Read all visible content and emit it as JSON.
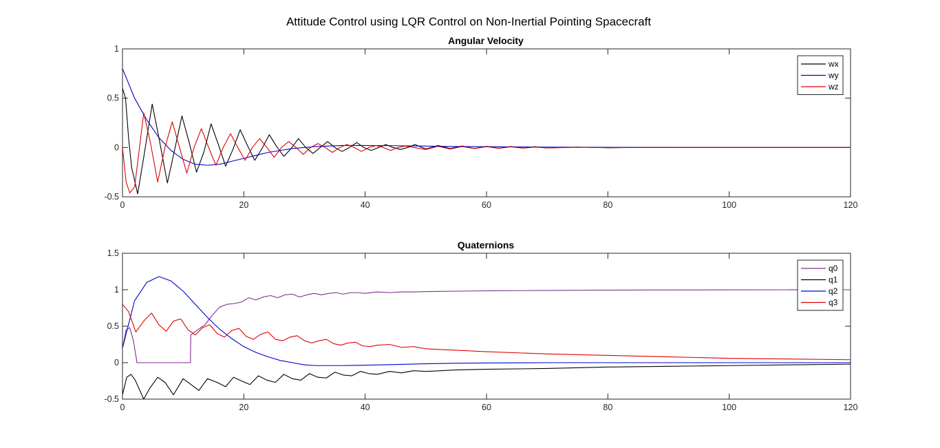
{
  "figure": {
    "title": "Attitude Control using LQR Control on Non-Inertial Pointing Spacecraft"
  },
  "chart_data": [
    {
      "type": "line",
      "title": "Angular Velocity",
      "xlabel": "",
      "ylabel": "",
      "xlim": [
        0,
        120
      ],
      "ylim": [
        -0.5,
        1
      ],
      "xticks": [
        0,
        20,
        40,
        60,
        80,
        100,
        120
      ],
      "yticks": [
        -0.5,
        0,
        0.5,
        1
      ],
      "grid": false,
      "legend_position": "top-right",
      "series": [
        {
          "name": "wx",
          "color": "#000000",
          "x": [
            0,
            0.5,
            1,
            1.5,
            2.5,
            3.5,
            4.9,
            6,
            7.4,
            8.5,
            9.8,
            11,
            12.2,
            13.4,
            14.6,
            15.8,
            17,
            18.2,
            19.4,
            20.6,
            21.8,
            23,
            24.2,
            25.4,
            26.6,
            27.8,
            29,
            30.2,
            31.4,
            32.6,
            33.8,
            35,
            36.2,
            37.4,
            38.6,
            39.8,
            41,
            42.2,
            43.4,
            44.6,
            45.8,
            47,
            48.2,
            50,
            52,
            54,
            56,
            58,
            60,
            62,
            64,
            66,
            68,
            70,
            75,
            80,
            85,
            90,
            95,
            100,
            110,
            120
          ],
          "y": [
            0.6,
            0.5,
            0.1,
            -0.2,
            -0.47,
            -0.1,
            0.44,
            0.1,
            -0.36,
            -0.05,
            0.32,
            0.05,
            -0.25,
            -0.05,
            0.24,
            0.03,
            -0.19,
            -0.02,
            0.18,
            0.02,
            -0.13,
            -0.01,
            0.13,
            0.01,
            -0.09,
            -0.01,
            0.09,
            0.0,
            -0.06,
            0.0,
            0.06,
            0.0,
            -0.04,
            0.0,
            0.05,
            0.0,
            -0.03,
            0.0,
            0.03,
            0.0,
            -0.02,
            0.0,
            0.03,
            -0.015,
            0.02,
            -0.01,
            0.015,
            -0.01,
            0.012,
            -0.008,
            0.01,
            -0.006,
            0.008,
            -0.004,
            0.004,
            -0.003,
            0.002,
            -0.001,
            0.001,
            0.0,
            0.0,
            0.0
          ]
        },
        {
          "name": "wy",
          "color": "#0000cc",
          "x": [
            0,
            2,
            4,
            6,
            8,
            10,
            12,
            14,
            16,
            18,
            20,
            22,
            24,
            26,
            28,
            30,
            32,
            34,
            36,
            38,
            40,
            45,
            50,
            55,
            60,
            70,
            80,
            90,
            100,
            110,
            120
          ],
          "y": [
            0.8,
            0.5,
            0.28,
            0.1,
            -0.03,
            -0.12,
            -0.17,
            -0.18,
            -0.17,
            -0.14,
            -0.11,
            -0.08,
            -0.05,
            -0.03,
            -0.01,
            0.0,
            0.01,
            0.015,
            0.02,
            0.02,
            0.02,
            0.018,
            0.014,
            0.01,
            0.008,
            0.004,
            0.002,
            0.001,
            0.0,
            0.0,
            0.0
          ]
        },
        {
          "name": "wz",
          "color": "#dd0000",
          "x": [
            0,
            0.6,
            1.2,
            2,
            3.5,
            4.6,
            5.8,
            7,
            8.2,
            9.4,
            10.6,
            11.8,
            13,
            14.2,
            15.4,
            16.6,
            17.8,
            19,
            20.2,
            21.4,
            22.6,
            23.8,
            25,
            26.2,
            27.4,
            28.6,
            29.8,
            31,
            32.2,
            33.4,
            34.6,
            35.8,
            37,
            38.2,
            39.4,
            40.6,
            41.8,
            43,
            44.2,
            45.4,
            46.6,
            48,
            50,
            52,
            54,
            56,
            58,
            60,
            62,
            64,
            66,
            68,
            70,
            75,
            80,
            90,
            100,
            110,
            120
          ],
          "y": [
            0.0,
            -0.35,
            -0.46,
            -0.4,
            0.35,
            0.05,
            -0.35,
            0.0,
            0.26,
            0.0,
            -0.26,
            0.0,
            0.19,
            0.0,
            -0.18,
            0.0,
            0.14,
            0.0,
            -0.13,
            0.0,
            0.09,
            0.0,
            -0.1,
            0.0,
            0.06,
            0.0,
            -0.07,
            0.0,
            0.04,
            0.0,
            -0.05,
            0.0,
            0.03,
            0.0,
            -0.04,
            0.0,
            0.02,
            0.0,
            -0.03,
            0.0,
            0.015,
            0.0,
            -0.02,
            0.012,
            -0.015,
            0.01,
            -0.01,
            0.008,
            -0.008,
            0.006,
            -0.006,
            0.004,
            -0.004,
            0.002,
            -0.002,
            0.001,
            0.0,
            0.0,
            0.0
          ]
        }
      ]
    },
    {
      "type": "line",
      "title": "Quaternions",
      "xlabel": "",
      "ylabel": "",
      "xlim": [
        0,
        120
      ],
      "ylim": [
        -0.5,
        1.5
      ],
      "xticks": [
        0,
        20,
        40,
        60,
        80,
        100,
        120
      ],
      "yticks": [
        -0.5,
        0,
        0.5,
        1,
        1.5
      ],
      "grid": false,
      "legend_position": "top-right",
      "series": [
        {
          "name": "q0",
          "color": "#7e2f8e",
          "x": [
            0,
            0.6,
            1.2,
            1.8,
            2.3,
            2.35,
            11.2,
            11.25,
            12.4,
            13.6,
            14.8,
            16,
            17.2,
            18.4,
            19.6,
            20.8,
            22,
            23.2,
            24.4,
            25.6,
            26.8,
            28,
            29.2,
            30.4,
            31.6,
            32.8,
            34,
            35.2,
            36.4,
            37.6,
            38.8,
            40,
            42,
            44,
            46,
            48,
            50,
            55,
            60,
            70,
            80,
            90,
            100,
            110,
            120
          ],
          "y": [
            0.2,
            0.45,
            0.48,
            0.3,
            0.05,
            0.0,
            0.0,
            0.38,
            0.45,
            0.52,
            0.65,
            0.76,
            0.8,
            0.81,
            0.83,
            0.89,
            0.86,
            0.9,
            0.92,
            0.89,
            0.93,
            0.94,
            0.9,
            0.93,
            0.95,
            0.93,
            0.95,
            0.96,
            0.94,
            0.96,
            0.96,
            0.95,
            0.97,
            0.96,
            0.97,
            0.97,
            0.975,
            0.98,
            0.985,
            0.99,
            0.995,
            0.997,
            0.998,
            0.999,
            1.0
          ]
        },
        {
          "name": "q1",
          "color": "#000000",
          "x": [
            0,
            0.7,
            1.4,
            2.1,
            3.5,
            4.5,
            5.8,
            7,
            8.4,
            10,
            11.3,
            12.6,
            14,
            15.6,
            17,
            18.3,
            19.6,
            21,
            22.4,
            23.8,
            25.2,
            26.6,
            28,
            29.4,
            30.8,
            32.2,
            33.6,
            35,
            36.4,
            37.8,
            39.2,
            40.6,
            42,
            44,
            46,
            48,
            50,
            55,
            60,
            70,
            80,
            90,
            100,
            110,
            120
          ],
          "y": [
            -0.44,
            -0.2,
            -0.16,
            -0.24,
            -0.5,
            -0.35,
            -0.2,
            -0.27,
            -0.44,
            -0.22,
            -0.3,
            -0.38,
            -0.22,
            -0.27,
            -0.33,
            -0.2,
            -0.25,
            -0.3,
            -0.18,
            -0.24,
            -0.27,
            -0.16,
            -0.22,
            -0.24,
            -0.15,
            -0.2,
            -0.21,
            -0.13,
            -0.17,
            -0.18,
            -0.12,
            -0.15,
            -0.16,
            -0.12,
            -0.14,
            -0.11,
            -0.12,
            -0.1,
            -0.09,
            -0.08,
            -0.06,
            -0.05,
            -0.04,
            -0.03,
            -0.02
          ]
        },
        {
          "name": "q2",
          "color": "#0000cc",
          "x": [
            0,
            2,
            4,
            6,
            8,
            10,
            12,
            14,
            16,
            18,
            20,
            22,
            24,
            26,
            28,
            30,
            32,
            34,
            36,
            40,
            45,
            50,
            55,
            60,
            70,
            80,
            90,
            100,
            110,
            120
          ],
          "y": [
            0.2,
            0.85,
            1.1,
            1.18,
            1.12,
            0.98,
            0.8,
            0.62,
            0.46,
            0.33,
            0.22,
            0.14,
            0.08,
            0.03,
            0.0,
            -0.03,
            -0.04,
            -0.04,
            -0.04,
            -0.035,
            -0.025,
            -0.015,
            -0.008,
            -0.004,
            0.0,
            0.0,
            0.0,
            0.0,
            0.0,
            0.0
          ]
        },
        {
          "name": "q3",
          "color": "#dd0000",
          "x": [
            0,
            1,
            2.2,
            3.6,
            4.8,
            6,
            7.2,
            8.4,
            9.6,
            10.8,
            12,
            13.2,
            14.4,
            15.6,
            16.8,
            18,
            19.2,
            20.4,
            21.6,
            22.8,
            24,
            25.2,
            26.4,
            27.6,
            28.8,
            30,
            31.2,
            32.4,
            33.6,
            34.8,
            36,
            37.2,
            38.4,
            39.6,
            40.8,
            42,
            44,
            46,
            48,
            50,
            55,
            60,
            70,
            80,
            90,
            100,
            110,
            120
          ],
          "y": [
            0.8,
            0.7,
            0.42,
            0.58,
            0.68,
            0.52,
            0.43,
            0.57,
            0.6,
            0.45,
            0.38,
            0.48,
            0.52,
            0.4,
            0.35,
            0.44,
            0.47,
            0.36,
            0.32,
            0.39,
            0.42,
            0.32,
            0.3,
            0.35,
            0.37,
            0.3,
            0.27,
            0.3,
            0.32,
            0.26,
            0.24,
            0.27,
            0.28,
            0.23,
            0.22,
            0.24,
            0.25,
            0.21,
            0.22,
            0.19,
            0.17,
            0.15,
            0.12,
            0.1,
            0.08,
            0.06,
            0.05,
            0.04
          ]
        }
      ]
    }
  ]
}
